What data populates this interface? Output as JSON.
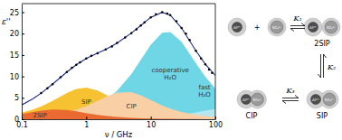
{
  "chart_data": {
    "type": "area",
    "x_label": "ν / GHz",
    "y_label": "ε''",
    "log": "x",
    "xlim": [
      0.1,
      100
    ],
    "xticks": [
      0.1,
      1,
      10,
      100
    ],
    "ylim": [
      0,
      27
    ],
    "yticks": [
      0,
      5,
      10,
      15,
      20,
      25
    ],
    "x": [
      0.1,
      0.15,
      0.2,
      0.3,
      0.5,
      0.7,
      1,
      1.5,
      2,
      3,
      5,
      7,
      10,
      15,
      20,
      30,
      50,
      70,
      100
    ],
    "series": [
      {
        "name": "cooperative\nH₂O",
        "type": "area",
        "color": "#6fd6e6",
        "values": [
          0.23,
          0.34,
          0.45,
          0.68,
          1.14,
          1.59,
          2.27,
          3.4,
          4.5,
          6.64,
          10.57,
          13.85,
          17.41,
          20.18,
          20.38,
          18.08,
          13.07,
          9.89,
          7.15
        ]
      },
      {
        "name": "fast\nH₂O",
        "type": "area",
        "color": "#b4e6f0",
        "values": [
          0.01,
          0.01,
          0.01,
          0.01,
          0.02,
          0.02,
          0.03,
          0.05,
          0.07,
          0.1,
          0.17,
          0.24,
          0.35,
          0.51,
          0.68,
          1.0,
          1.56,
          1.99,
          2.4
        ]
      },
      {
        "name": "SIP",
        "type": "area",
        "color": "#f7c232",
        "values": [
          1.54,
          2.28,
          2.99,
          4.25,
          6.1,
          7.06,
          7.39,
          6.68,
          5.74,
          4.26,
          2.71,
          1.97,
          1.4,
          0.93,
          0.7,
          0.47,
          0.28,
          0.2,
          0.14
        ]
      },
      {
        "name": "CIP",
        "type": "area",
        "color": "#f9cfa6",
        "values": [
          0.33,
          0.49,
          0.65,
          0.97,
          1.6,
          2.21,
          3.06,
          4.28,
          5.2,
          6.24,
          6.34,
          5.6,
          4.48,
          3.24,
          2.5,
          1.7,
          1.03,
          0.74,
          0.52
        ]
      },
      {
        "name": "2SIP",
        "type": "area",
        "color": "#ea6a32",
        "values": [
          1.22,
          1.67,
          1.98,
          2.27,
          2.16,
          1.84,
          1.43,
          1.02,
          0.78,
          0.53,
          0.32,
          0.23,
          0.16,
          0.11,
          0.08,
          0.05,
          0.03,
          0.02,
          0.02
        ]
      },
      {
        "type": "line",
        "color": "#1c2e8c",
        "values": [
          3.33,
          4.79,
          6.08,
          8.18,
          11.02,
          12.72,
          14.18,
          15.43,
          16.29,
          17.77,
          20.11,
          21.89,
          23.8,
          24.97,
          24.34,
          21.3,
          15.97,
          12.84,
          10.23
        ]
      },
      {
        "type": "scatter",
        "color": "#000000",
        "marker": "circle",
        "x": [
          0.2,
          0.25,
          0.3,
          0.4,
          0.5,
          0.6,
          0.7,
          0.8,
          1,
          1.2,
          1.5,
          2,
          2.5,
          3,
          4,
          5,
          6,
          7,
          8,
          10,
          12,
          15,
          18,
          20,
          25,
          30,
          35,
          40,
          50,
          60,
          70,
          80,
          89
        ],
        "values": [
          6.1,
          7.2,
          8.2,
          9.8,
          11.0,
          12.0,
          12.7,
          13.3,
          14.2,
          14.8,
          15.4,
          16.3,
          17.0,
          17.8,
          19.1,
          20.1,
          21.0,
          21.9,
          22.6,
          23.8,
          24.5,
          25.0,
          24.7,
          24.3,
          22.9,
          21.3,
          20.0,
          18.5,
          16.0,
          14.2,
          12.8,
          11.6,
          10.8
        ]
      }
    ]
  },
  "diagram": {
    "cation": "Al³⁺",
    "anion": "SO₄²⁻",
    "plus": "+",
    "species": [
      "2SIP",
      "SIP",
      "CIP"
    ],
    "constants": [
      "K₁",
      "K₂",
      "K₃"
    ]
  }
}
